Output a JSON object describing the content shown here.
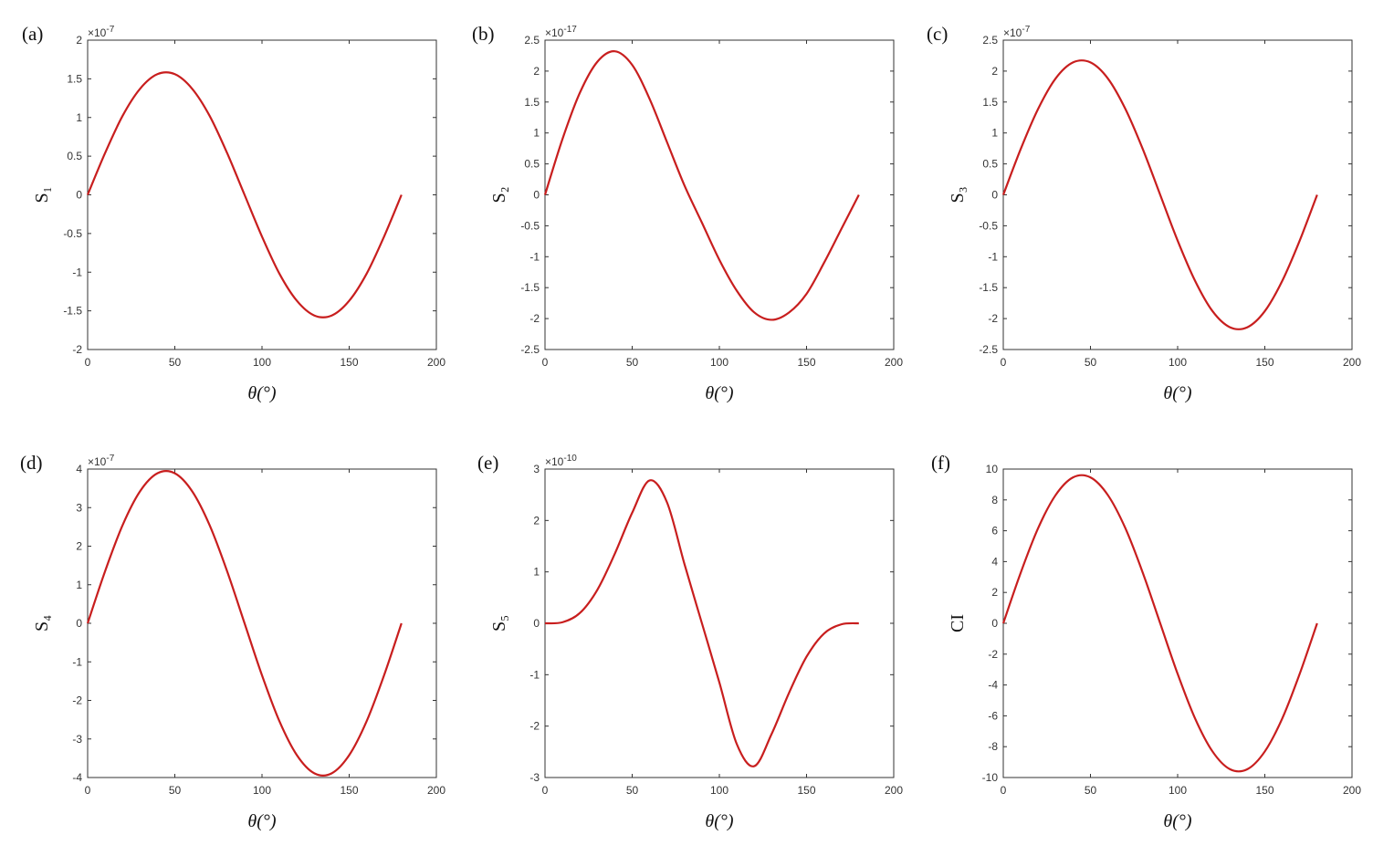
{
  "chart_data": [
    {
      "type": "line",
      "panel": "(a)",
      "ylabel": "S₁",
      "xlabel": "θ(°)",
      "multiplier": {
        "base": "×10",
        "exponent": "-7"
      },
      "color": "#c81e1e",
      "x": [
        0,
        10,
        20,
        30,
        40,
        50,
        60,
        70,
        80,
        90,
        100,
        110,
        120,
        130,
        140,
        150,
        160,
        170,
        180
      ],
      "values": [
        0,
        0.54,
        1.02,
        1.37,
        1.56,
        1.56,
        1.37,
        1.02,
        0.54,
        0,
        -0.54,
        -1.02,
        -1.37,
        -1.56,
        -1.56,
        -1.37,
        -1.02,
        -0.54,
        0
      ],
      "xlim": [
        0,
        200
      ],
      "xticks": [
        0,
        50,
        100,
        150,
        200
      ],
      "ylim": [
        -2,
        2
      ],
      "yticks": [
        -2,
        -1.5,
        -1,
        -0.5,
        0,
        0.5,
        1,
        1.5,
        2
      ]
    },
    {
      "type": "line",
      "panel": "(b)",
      "ylabel": "S₂",
      "xlabel": "θ(°)",
      "multiplier": {
        "base": "×10",
        "exponent": "-17"
      },
      "color": "#c81e1e",
      "x": [
        0,
        10,
        20,
        30,
        40,
        50,
        60,
        70,
        80,
        90,
        100,
        110,
        120,
        130,
        140,
        150,
        160,
        170,
        180
      ],
      "values": [
        0,
        0.9,
        1.65,
        2.15,
        2.32,
        2.1,
        1.55,
        0.85,
        0.15,
        -0.45,
        -1.05,
        -1.55,
        -1.9,
        -2.02,
        -1.9,
        -1.6,
        -1.1,
        -0.55,
        0
      ],
      "xlim": [
        0,
        200
      ],
      "xticks": [
        0,
        50,
        100,
        150,
        200
      ],
      "ylim": [
        -2.5,
        2.5
      ],
      "yticks": [
        -2.5,
        -2,
        -1.5,
        -1,
        -0.5,
        0,
        0.5,
        1,
        1.5,
        2,
        2.5
      ]
    },
    {
      "type": "line",
      "panel": "(c)",
      "ylabel": "S₃",
      "xlabel": "θ(°)",
      "multiplier": {
        "base": "×10",
        "exponent": "-7"
      },
      "color": "#c81e1e",
      "x": [
        0,
        10,
        20,
        30,
        40,
        50,
        60,
        70,
        80,
        90,
        100,
        110,
        120,
        130,
        140,
        150,
        160,
        170,
        180
      ],
      "values": [
        0,
        0.74,
        1.39,
        1.88,
        2.14,
        2.14,
        1.88,
        1.39,
        0.74,
        0,
        -0.74,
        -1.39,
        -1.88,
        -2.14,
        -2.14,
        -1.88,
        -1.39,
        -0.74,
        0
      ],
      "xlim": [
        0,
        200
      ],
      "xticks": [
        0,
        50,
        100,
        150,
        200
      ],
      "ylim": [
        -2.5,
        2.5
      ],
      "yticks": [
        -2.5,
        -2,
        -1.5,
        -1,
        -0.5,
        0,
        0.5,
        1,
        1.5,
        2,
        2.5
      ]
    },
    {
      "type": "line",
      "panel": "(d)",
      "ylabel": "S₄",
      "xlabel": "θ(°)",
      "multiplier": {
        "base": "×10",
        "exponent": "-7"
      },
      "color": "#c81e1e",
      "x": [
        0,
        10,
        20,
        30,
        40,
        50,
        60,
        70,
        80,
        90,
        100,
        110,
        120,
        130,
        140,
        150,
        160,
        170,
        180
      ],
      "values": [
        0,
        1.35,
        2.54,
        3.42,
        3.89,
        3.89,
        3.42,
        2.54,
        1.35,
        0,
        -1.35,
        -2.54,
        -3.42,
        -3.89,
        -3.89,
        -3.42,
        -2.54,
        -1.35,
        0
      ],
      "xlim": [
        0,
        200
      ],
      "xticks": [
        0,
        50,
        100,
        150,
        200
      ],
      "ylim": [
        -4,
        4
      ],
      "yticks": [
        -4,
        -3,
        -2,
        -1,
        0,
        1,
        2,
        3,
        4
      ]
    },
    {
      "type": "line",
      "panel": "(e)",
      "ylabel": "S₅",
      "xlabel": "θ(°)",
      "multiplier": {
        "base": "×10",
        "exponent": "-10"
      },
      "color": "#c81e1e",
      "x": [
        0,
        10,
        20,
        30,
        40,
        50,
        60,
        70,
        80,
        90,
        100,
        110,
        120,
        130,
        140,
        150,
        160,
        170,
        180
      ],
      "values": [
        0,
        0.02,
        0.2,
        0.65,
        1.35,
        2.15,
        2.78,
        2.35,
        1.15,
        0,
        -1.15,
        -2.35,
        -2.78,
        -2.15,
        -1.35,
        -0.65,
        -0.2,
        -0.02,
        0
      ],
      "xlim": [
        0,
        200
      ],
      "xticks": [
        0,
        50,
        100,
        150,
        200
      ],
      "ylim": [
        -3,
        3
      ],
      "yticks": [
        -3,
        -2,
        -1,
        0,
        1,
        2,
        3
      ]
    },
    {
      "type": "line",
      "panel": "(f)",
      "ylabel": "CI",
      "xlabel": "θ(°)",
      "color": "#c81e1e",
      "x": [
        0,
        10,
        20,
        30,
        40,
        50,
        60,
        70,
        80,
        90,
        100,
        110,
        120,
        130,
        140,
        150,
        160,
        170,
        180
      ],
      "values": [
        0,
        3.28,
        6.17,
        8.31,
        9.46,
        9.46,
        8.31,
        6.17,
        3.28,
        0,
        -3.28,
        -6.17,
        -8.31,
        -9.46,
        -9.46,
        -8.31,
        -6.17,
        -3.28,
        0
      ],
      "xlim": [
        0,
        200
      ],
      "xticks": [
        0,
        50,
        100,
        150,
        200
      ],
      "ylim": [
        -10,
        10
      ],
      "yticks": [
        -10,
        -8,
        -6,
        -4,
        -2,
        0,
        2,
        4,
        6,
        8,
        10
      ]
    }
  ]
}
